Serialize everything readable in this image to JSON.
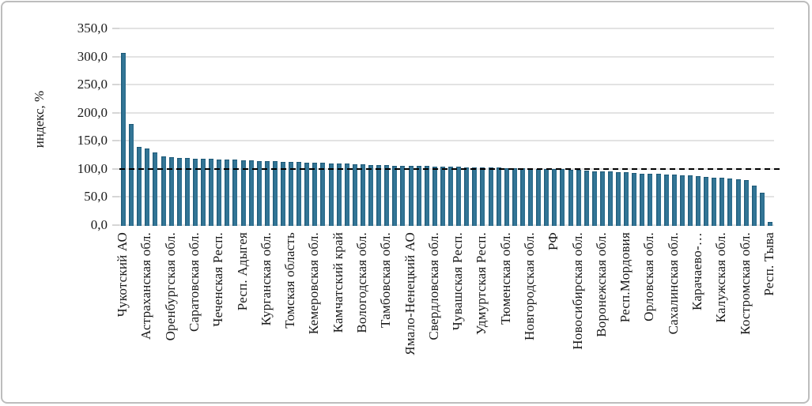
{
  "chart_data": {
    "type": "bar",
    "title": "",
    "xlabel": "",
    "ylabel": "индекс, %",
    "ylim": [
      0,
      350
    ],
    "ytick_step": 50,
    "ytick_labels": [
      "350,0",
      "300,0",
      "250,0",
      "200,0",
      "150,0",
      "100,0",
      "50,0",
      "0,0"
    ],
    "grid": "horizontal",
    "legend": "none",
    "bar_color": "#2b6b8b",
    "grid_color": "#e3e3e3",
    "reference_line": {
      "value": 100,
      "style": "dashed",
      "color": "#000000"
    },
    "label_interval": 3,
    "categories_labeled": [
      "Чукотский АО",
      "Астраханская обл.",
      "Оренбургская обл.",
      "Саратовская обл.",
      "Чеченская Респ.",
      "Респ. Адыгея",
      "Курганская обл.",
      "Томская область",
      "Кемеровская обл.",
      "Камчатский край",
      "Вологодская обл.",
      "Тамбовская обл.",
      "Ямало-Ненецкий АО",
      "Свердловская обл.",
      "Чувашская Респ.",
      "Удмуртская Респ.",
      "Тюменская обл.",
      "Новгородская обл.",
      "РФ",
      "Новосибирская обл.",
      "Воронежская обл.",
      "Респ.Мордовия",
      "Орловская обл.",
      "Сахалинская обл.",
      "Карачаево-…",
      "Калужская обл.",
      "Костромская обл.",
      "Респ. Тыва"
    ],
    "values": [
      307,
      180,
      139,
      137,
      130,
      122,
      121,
      120,
      119,
      118.5,
      118,
      117.5,
      117,
      116.5,
      116,
      115.5,
      115,
      114.5,
      114,
      113.5,
      113,
      112.5,
      112,
      111.5,
      111,
      110.5,
      110,
      109.5,
      109,
      108.5,
      108,
      107.5,
      107,
      106.5,
      106,
      105.5,
      105.5,
      105,
      105,
      104.5,
      104,
      104,
      103.5,
      103,
      103,
      102.5,
      102,
      102,
      101.5,
      101,
      101,
      100.5,
      100.5,
      100,
      100,
      99.5,
      98.5,
      98,
      97,
      96,
      95.5,
      95,
      94,
      93.5,
      93,
      92,
      91.5,
      91,
      90,
      89.5,
      89,
      88,
      87,
      86,
      85,
      84,
      83,
      82,
      80,
      70,
      57,
      6
    ]
  }
}
